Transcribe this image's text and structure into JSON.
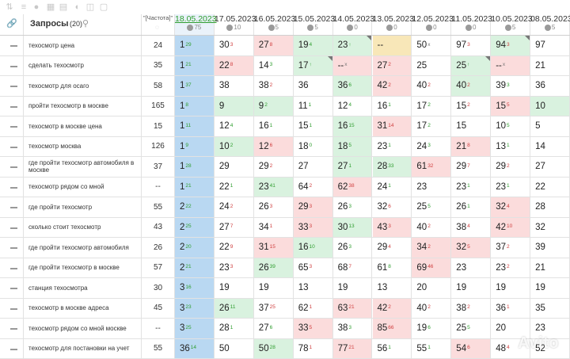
{
  "header": {
    "query_title": "Запросы",
    "query_count": "(20)",
    "freq_label": "\"[Частота]\"",
    "dates": [
      {
        "label": "18.05.2023",
        "sub": "75",
        "active": true
      },
      {
        "label": "17.05.2023",
        "sub": "10",
        "active": false
      },
      {
        "label": "16.05.2023",
        "sub": "5",
        "active": false
      },
      {
        "label": "15.05.2023",
        "sub": "5",
        "active": false
      },
      {
        "label": "14.05.2023",
        "sub": "0",
        "active": false
      },
      {
        "label": "13.05.2023",
        "sub": "0",
        "active": false
      },
      {
        "label": "12.05.2023",
        "sub": "0",
        "active": false
      },
      {
        "label": "11.05.2023",
        "sub": "0",
        "active": false
      },
      {
        "label": "10.05.2023",
        "sub": "5",
        "active": false
      },
      {
        "label": "08.05.2023",
        "sub": "5",
        "active": false
      }
    ]
  },
  "rows": [
    {
      "kw": "техосмотр цена",
      "freq": "24",
      "cells": [
        [
          "1",
          "29",
          "g",
          "b"
        ],
        [
          "30",
          "3",
          "r",
          ""
        ],
        [
          "27",
          "8",
          "r",
          "r"
        ],
        [
          "19",
          "4",
          "g",
          "g"
        ],
        [
          "23",
          "↑",
          "g",
          "g"
        ],
        [
          "--",
          "",
          "n",
          "y"
        ],
        [
          "50",
          "x",
          "n",
          ""
        ],
        [
          "97",
          "3",
          "r",
          ""
        ],
        [
          "94",
          "3",
          "r",
          "g"
        ],
        [
          "97",
          "",
          "",
          " "
        ]
      ]
    },
    {
      "kw": "сделать техосмотр",
      "freq": "35",
      "cells": [
        [
          "1",
          "21",
          "g",
          "b"
        ],
        [
          "22",
          "8",
          "r",
          "r"
        ],
        [
          "14",
          "3",
          "g",
          ""
        ],
        [
          "17",
          "↑",
          "g",
          "g"
        ],
        [
          "--",
          "x",
          "n",
          "r"
        ],
        [
          "27",
          "2",
          "r",
          "r"
        ],
        [
          "25",
          "",
          "",
          ""
        ],
        [
          "25",
          "↑",
          "g",
          "g"
        ],
        [
          "--",
          "x",
          "n",
          "r"
        ],
        [
          "21",
          "",
          "",
          " "
        ]
      ]
    },
    {
      "kw": "техосмотр для осаго",
      "freq": "58",
      "cells": [
        [
          "1",
          "37",
          "g",
          "b"
        ],
        [
          "38",
          "",
          "",
          ""
        ],
        [
          "38",
          "2",
          "r",
          ""
        ],
        [
          "36",
          "",
          "",
          ""
        ],
        [
          "36",
          "6",
          "g",
          "g"
        ],
        [
          "42",
          "2",
          "r",
          "r"
        ],
        [
          "40",
          "2",
          "r",
          ""
        ],
        [
          "40",
          "2",
          "r",
          "g"
        ],
        [
          "39",
          "3",
          "g",
          ""
        ],
        [
          "36",
          "",
          "",
          " "
        ]
      ]
    },
    {
      "kw": "пройти техосмотр в москве",
      "freq": "165",
      "cells": [
        [
          "1",
          "8",
          "g",
          "b"
        ],
        [
          "9",
          "",
          "",
          "g"
        ],
        [
          "9",
          "2",
          "g",
          "g"
        ],
        [
          "11",
          "1",
          "g",
          ""
        ],
        [
          "12",
          "4",
          "g",
          ""
        ],
        [
          "16",
          "1",
          "g",
          ""
        ],
        [
          "17",
          "2",
          "g",
          ""
        ],
        [
          "15",
          "2",
          "r",
          ""
        ],
        [
          "15",
          "5",
          "r",
          "r"
        ],
        [
          "10",
          "",
          "",
          "g"
        ]
      ]
    },
    {
      "kw": "техосмотр в москве цена",
      "freq": "15",
      "cells": [
        [
          "1",
          "11",
          "g",
          "b"
        ],
        [
          "12",
          "4",
          "g",
          ""
        ],
        [
          "16",
          "1",
          "g",
          ""
        ],
        [
          "15",
          "1",
          "g",
          ""
        ],
        [
          "16",
          "15",
          "g",
          "g"
        ],
        [
          "31",
          "14",
          "r",
          "r"
        ],
        [
          "17",
          "2",
          "g",
          ""
        ],
        [
          "15",
          "",
          "",
          ""
        ],
        [
          "10",
          "5",
          "g",
          ""
        ],
        [
          "5",
          "",
          "",
          " "
        ]
      ]
    },
    {
      "kw": "техосмотр москва",
      "freq": "126",
      "cells": [
        [
          "1",
          "9",
          "g",
          "b"
        ],
        [
          "10",
          "2",
          "g",
          "g"
        ],
        [
          "12",
          "6",
          "r",
          "r"
        ],
        [
          "18",
          "0",
          "g",
          ""
        ],
        [
          "18",
          "5",
          "g",
          "g"
        ],
        [
          "23",
          "1",
          "g",
          ""
        ],
        [
          "24",
          "3",
          "g",
          ""
        ],
        [
          "21",
          "8",
          "r",
          "r"
        ],
        [
          "13",
          "1",
          "g",
          ""
        ],
        [
          "14",
          "",
          "",
          " "
        ]
      ]
    },
    {
      "kw": "где пройти техосмотр автомобиля в москве",
      "freq": "37",
      "cells": [
        [
          "1",
          "28",
          "g",
          "b"
        ],
        [
          "29",
          "",
          "",
          ""
        ],
        [
          "29",
          "2",
          "r",
          ""
        ],
        [
          "27",
          "",
          "",
          ""
        ],
        [
          "27",
          "1",
          "g",
          "g"
        ],
        [
          "28",
          "33",
          "g",
          "g"
        ],
        [
          "61",
          "32",
          "r",
          "r"
        ],
        [
          "29",
          "7",
          "r",
          ""
        ],
        [
          "29",
          "2",
          "r",
          ""
        ],
        [
          "27",
          "",
          "",
          " "
        ]
      ]
    },
    {
      "kw": "техосмотр рядом со мной",
      "freq": "--",
      "cells": [
        [
          "1",
          "21",
          "g",
          "b"
        ],
        [
          "22",
          "1",
          "g",
          ""
        ],
        [
          "23",
          "41",
          "g",
          "g"
        ],
        [
          "64",
          "2",
          "r",
          ""
        ],
        [
          "62",
          "38",
          "r",
          "r"
        ],
        [
          "24",
          "1",
          "g",
          ""
        ],
        [
          "23",
          "",
          "",
          ""
        ],
        [
          "23",
          "1",
          "g",
          ""
        ],
        [
          "23",
          "1",
          "g",
          ""
        ],
        [
          "22",
          "",
          "",
          " "
        ]
      ]
    },
    {
      "kw": "где пройти техосмотр",
      "freq": "55",
      "cells": [
        [
          "2",
          "22",
          "g",
          "b"
        ],
        [
          "24",
          "2",
          "r",
          ""
        ],
        [
          "26",
          "3",
          "r",
          ""
        ],
        [
          "29",
          "3",
          "r",
          "r"
        ],
        [
          "26",
          "3",
          "g",
          ""
        ],
        [
          "32",
          "6",
          "r",
          ""
        ],
        [
          "25",
          "5",
          "g",
          ""
        ],
        [
          "26",
          "1",
          "g",
          ""
        ],
        [
          "32",
          "4",
          "r",
          "r"
        ],
        [
          "28",
          "",
          "",
          " "
        ]
      ]
    },
    {
      "kw": "сколько стоит техосмотр",
      "freq": "43",
      "cells": [
        [
          "2",
          "25",
          "g",
          "b"
        ],
        [
          "27",
          "7",
          "r",
          ""
        ],
        [
          "34",
          "1",
          "r",
          ""
        ],
        [
          "33",
          "3",
          "r",
          "r"
        ],
        [
          "30",
          "13",
          "g",
          "g"
        ],
        [
          "43",
          "3",
          "r",
          "r"
        ],
        [
          "40",
          "2",
          "r",
          ""
        ],
        [
          "38",
          "4",
          "r",
          ""
        ],
        [
          "42",
          "10",
          "r",
          "r"
        ],
        [
          "32",
          "",
          "",
          " "
        ]
      ]
    },
    {
      "kw": "где пройти техосмотр автомобиля",
      "freq": "26",
      "cells": [
        [
          "2",
          "20",
          "g",
          "b"
        ],
        [
          "22",
          "9",
          "r",
          ""
        ],
        [
          "31",
          "15",
          "r",
          "r"
        ],
        [
          "16",
          "10",
          "g",
          "g"
        ],
        [
          "26",
          "3",
          "g",
          ""
        ],
        [
          "29",
          "4",
          "r",
          ""
        ],
        [
          "34",
          "2",
          "r",
          "r"
        ],
        [
          "32",
          "5",
          "r",
          "r"
        ],
        [
          "37",
          "2",
          "r",
          ""
        ],
        [
          "39",
          "",
          "",
          " "
        ]
      ]
    },
    {
      "kw": "где пройти техосмотр в москве",
      "freq": "57",
      "cells": [
        [
          "2",
          "21",
          "g",
          "b"
        ],
        [
          "23",
          "3",
          "r",
          ""
        ],
        [
          "26",
          "39",
          "g",
          "g"
        ],
        [
          "65",
          "3",
          "r",
          ""
        ],
        [
          "68",
          "7",
          "r",
          ""
        ],
        [
          "61",
          "8",
          "g",
          ""
        ],
        [
          "69",
          "46",
          "r",
          "r"
        ],
        [
          "23",
          "",
          "",
          ""
        ],
        [
          "23",
          "2",
          "r",
          ""
        ],
        [
          "21",
          "",
          "",
          " "
        ]
      ]
    },
    {
      "kw": "станция техосмотра",
      "freq": "30",
      "cells": [
        [
          "3",
          "16",
          "g",
          "b"
        ],
        [
          "19",
          "",
          "",
          ""
        ],
        [
          "19",
          "",
          "",
          ""
        ],
        [
          "13",
          "",
          "",
          ""
        ],
        [
          "19",
          "",
          "",
          ""
        ],
        [
          "13",
          "",
          "",
          ""
        ],
        [
          "20",
          "",
          "",
          ""
        ],
        [
          "19",
          "",
          "",
          ""
        ],
        [
          "19",
          "",
          "",
          ""
        ],
        [
          "19",
          "",
          "",
          " "
        ]
      ]
    },
    {
      "kw": "техосмотр в москве адреса",
      "freq": "45",
      "cells": [
        [
          "3",
          "23",
          "g",
          "b"
        ],
        [
          "26",
          "11",
          "g",
          "g"
        ],
        [
          "37",
          "25",
          "r",
          ""
        ],
        [
          "62",
          "1",
          "r",
          ""
        ],
        [
          "63",
          "21",
          "r",
          "r"
        ],
        [
          "42",
          "2",
          "r",
          "r"
        ],
        [
          "40",
          "2",
          "r",
          ""
        ],
        [
          "38",
          "2",
          "r",
          ""
        ],
        [
          "36",
          "1",
          "r",
          ""
        ],
        [
          "35",
          "",
          "",
          " "
        ]
      ]
    },
    {
      "kw": "техосмотр рядом со мной москве",
      "freq": "--",
      "cells": [
        [
          "3",
          "25",
          "g",
          "b"
        ],
        [
          "28",
          "1",
          "g",
          ""
        ],
        [
          "27",
          "6",
          "g",
          ""
        ],
        [
          "33",
          "5",
          "r",
          "r"
        ],
        [
          "38",
          "3",
          "g",
          ""
        ],
        [
          "85",
          "66",
          "r",
          "r"
        ],
        [
          "19",
          "6",
          "g",
          ""
        ],
        [
          "25",
          "5",
          "g",
          ""
        ],
        [
          "20",
          "",
          "",
          ""
        ],
        [
          "23",
          "",
          "",
          " "
        ]
      ]
    },
    {
      "kw": "техосмотр для постановки на учет",
      "freq": "55",
      "cells": [
        [
          "36",
          "14",
          "g",
          "b"
        ],
        [
          "50",
          "",
          "",
          ""
        ],
        [
          "50",
          "28",
          "g",
          "g"
        ],
        [
          "78",
          "1",
          "r",
          ""
        ],
        [
          "77",
          "21",
          "r",
          "r"
        ],
        [
          "56",
          "1",
          "g",
          ""
        ],
        [
          "55",
          "1",
          "g",
          ""
        ],
        [
          "54",
          "6",
          "r",
          "r"
        ],
        [
          "48",
          "4",
          "r",
          ""
        ],
        [
          "52",
          "",
          "",
          " "
        ]
      ]
    }
  ],
  "watermark": "Avito"
}
